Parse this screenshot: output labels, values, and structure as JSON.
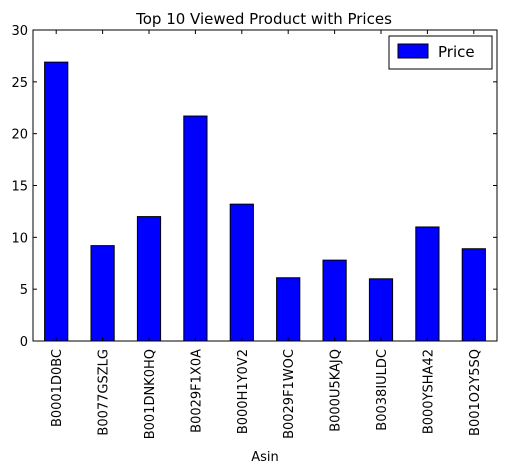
{
  "chart_data": {
    "type": "bar",
    "title": "Top 10 Viewed Product with Prices",
    "xlabel": "Asin",
    "ylabel": "",
    "ylim": [
      0,
      30
    ],
    "yticks": [
      0,
      5,
      10,
      15,
      20,
      25,
      30
    ],
    "grid": false,
    "legend_position": "top-right",
    "categories": [
      "B0001D0BC",
      "B0077GSZLG",
      "B001DNK0HQ",
      "B0029F1X0A",
      "B000H1Y0V2",
      "B0029F1WOC",
      "B000U5KAJQ",
      "B0038IULDC",
      "B000YSHA42",
      "B001O2Y5SQ"
    ],
    "series": [
      {
        "name": "Price",
        "color": "#0000ff",
        "values": [
          26.9,
          9.2,
          12.0,
          21.7,
          13.2,
          6.1,
          7.8,
          6.0,
          11.0,
          8.9
        ]
      }
    ]
  }
}
